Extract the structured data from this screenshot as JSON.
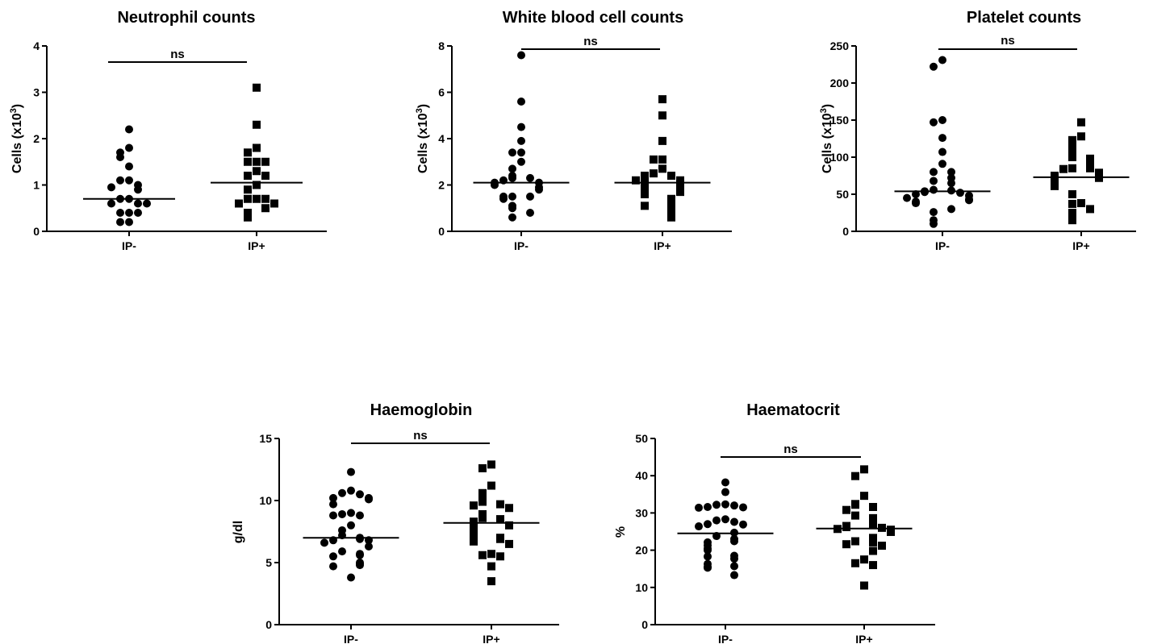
{
  "chart_data": [
    {
      "type": "scatter",
      "title": "Neutrophil counts",
      "ylabel": "Cells (x10³)",
      "ylabel_base": "Cells (x10",
      "ylabel_sup": "3",
      "ylabel_close": ")",
      "ylim": [
        0,
        4
      ],
      "yticks": [
        0,
        1,
        2,
        3,
        4
      ],
      "categories": [
        "IP-",
        "IP+"
      ],
      "significance": "ns",
      "series": [
        {
          "marker": "circle",
          "median": 0.7,
          "values": [
            2.2,
            1.8,
            1.7,
            1.6,
            1.4,
            1.1,
            1.1,
            1.0,
            0.95,
            0.9,
            0.7,
            0.7,
            0.6,
            0.6,
            0.6,
            0.4,
            0.4,
            0.4,
            0.2,
            0.2
          ]
        },
        {
          "marker": "square",
          "median": 1.05,
          "values": [
            3.1,
            2.3,
            1.8,
            1.7,
            1.5,
            1.5,
            1.5,
            1.3,
            1.2,
            1.2,
            1.0,
            0.9,
            0.7,
            0.7,
            0.7,
            0.6,
            0.6,
            0.5,
            0.4,
            0.3
          ]
        }
      ]
    },
    {
      "type": "scatter",
      "title": "White blood cell counts",
      "ylabel": "Cells (x10³)",
      "ylabel_base": "Cells (x10",
      "ylabel_sup": "3",
      "ylabel_close": ")",
      "ylim": [
        0,
        8
      ],
      "yticks": [
        0,
        2,
        4,
        6,
        8
      ],
      "categories": [
        "IP-",
        "IP+"
      ],
      "significance": "ns",
      "series": [
        {
          "marker": "circle",
          "median": 2.1,
          "values": [
            7.6,
            5.6,
            4.5,
            3.9,
            3.4,
            3.4,
            3.0,
            2.7,
            2.4,
            2.3,
            2.3,
            2.2,
            2.1,
            2.1,
            2.0,
            1.9,
            1.8,
            1.5,
            1.5,
            1.5,
            1.4,
            1.1,
            1.0,
            0.8,
            0.6
          ]
        },
        {
          "marker": "square",
          "median": 2.1,
          "values": [
            5.7,
            5.0,
            3.9,
            3.1,
            3.1,
            2.7,
            2.5,
            2.4,
            2.4,
            2.3,
            2.2,
            2.2,
            2.0,
            2.0,
            1.9,
            1.8,
            1.7,
            1.6,
            1.4,
            1.3,
            1.2,
            1.1,
            0.9,
            0.8,
            0.6
          ]
        }
      ]
    },
    {
      "type": "scatter",
      "title": "Platelet counts",
      "ylabel": "Cells (x10³)",
      "ylabel_base": "Cells (x10",
      "ylabel_sup": "3",
      "ylabel_close": ")",
      "ylim": [
        0,
        250
      ],
      "yticks": [
        0,
        50,
        100,
        150,
        200,
        250
      ],
      "categories": [
        "IP-",
        "IP+"
      ],
      "significance": "ns",
      "series": [
        {
          "marker": "circle",
          "median": 54,
          "values": [
            231,
            222,
            150,
            147,
            126,
            107,
            91,
            80,
            80,
            72,
            68,
            65,
            56,
            55,
            54,
            53,
            52,
            50,
            48,
            45,
            43,
            42,
            40,
            38,
            30,
            26,
            15,
            10
          ]
        },
        {
          "marker": "square",
          "median": 73,
          "values": [
            147,
            128,
            123,
            116,
            108,
            100,
            98,
            90,
            85,
            85,
            84,
            79,
            77,
            75,
            73,
            72,
            70,
            66,
            65,
            62,
            61,
            50,
            38,
            37,
            30,
            25,
            15
          ]
        }
      ]
    },
    {
      "type": "scatter",
      "title": "Haemoglobin",
      "ylabel": "g/dl",
      "ylabel_base": "g/dl",
      "ylabel_sup": "",
      "ylabel_close": "",
      "ylim": [
        0,
        15
      ],
      "yticks": [
        0,
        5,
        10,
        15
      ],
      "categories": [
        "IP-",
        "IP+"
      ],
      "significance": "ns",
      "series": [
        {
          "marker": "circle",
          "median": 7.0,
          "values": [
            12.3,
            10.8,
            10.6,
            10.5,
            10.2,
            10.2,
            10.1,
            9.7,
            9.0,
            8.9,
            8.8,
            8.8,
            8.0,
            7.6,
            7.2,
            7.0,
            6.9,
            6.8,
            6.8,
            6.6,
            6.3,
            5.9,
            5.7,
            5.6,
            5.5,
            5.0,
            4.9,
            4.8,
            4.7,
            3.8
          ]
        },
        {
          "marker": "square",
          "median": 8.2,
          "values": [
            12.9,
            12.6,
            11.2,
            10.6,
            10.0,
            9.9,
            9.7,
            9.6,
            9.4,
            8.9,
            8.6,
            8.5,
            8.3,
            8.2,
            8.0,
            7.8,
            7.6,
            7.4,
            7.0,
            6.9,
            6.8,
            6.7,
            6.5,
            5.7,
            5.6,
            5.5,
            4.7,
            3.5
          ]
        }
      ]
    },
    {
      "type": "scatter",
      "title": "Haematocrit",
      "ylabel": "%",
      "ylabel_base": "%",
      "ylabel_sup": "",
      "ylabel_close": "",
      "ylim": [
        0,
        50
      ],
      "yticks": [
        0,
        10,
        20,
        30,
        40,
        50
      ],
      "categories": [
        "IP-",
        "IP+"
      ],
      "significance": "ns",
      "series": [
        {
          "marker": "circle",
          "median": 24.5,
          "values": [
            38.2,
            35.6,
            32.3,
            32.2,
            32.0,
            31.6,
            31.5,
            31.4,
            28.3,
            28.0,
            27.6,
            27.0,
            26.9,
            26.4,
            24.7,
            23.8,
            23.0,
            22.4,
            22.1,
            21.3,
            20.4,
            20.0,
            18.5,
            18.3,
            17.7,
            16.3,
            15.7,
            15.5,
            15.3,
            13.3
          ]
        },
        {
          "marker": "square",
          "median": 25.8,
          "values": [
            41.7,
            39.9,
            34.6,
            32.4,
            32.2,
            31.6,
            30.8,
            29.3,
            28.6,
            27.2,
            27.0,
            26.5,
            26.2,
            26.0,
            25.7,
            25.5,
            24.9,
            23.3,
            22.4,
            22.1,
            21.6,
            21.2,
            19.8,
            17.5,
            16.5,
            16.0,
            10.5
          ]
        }
      ]
    }
  ]
}
